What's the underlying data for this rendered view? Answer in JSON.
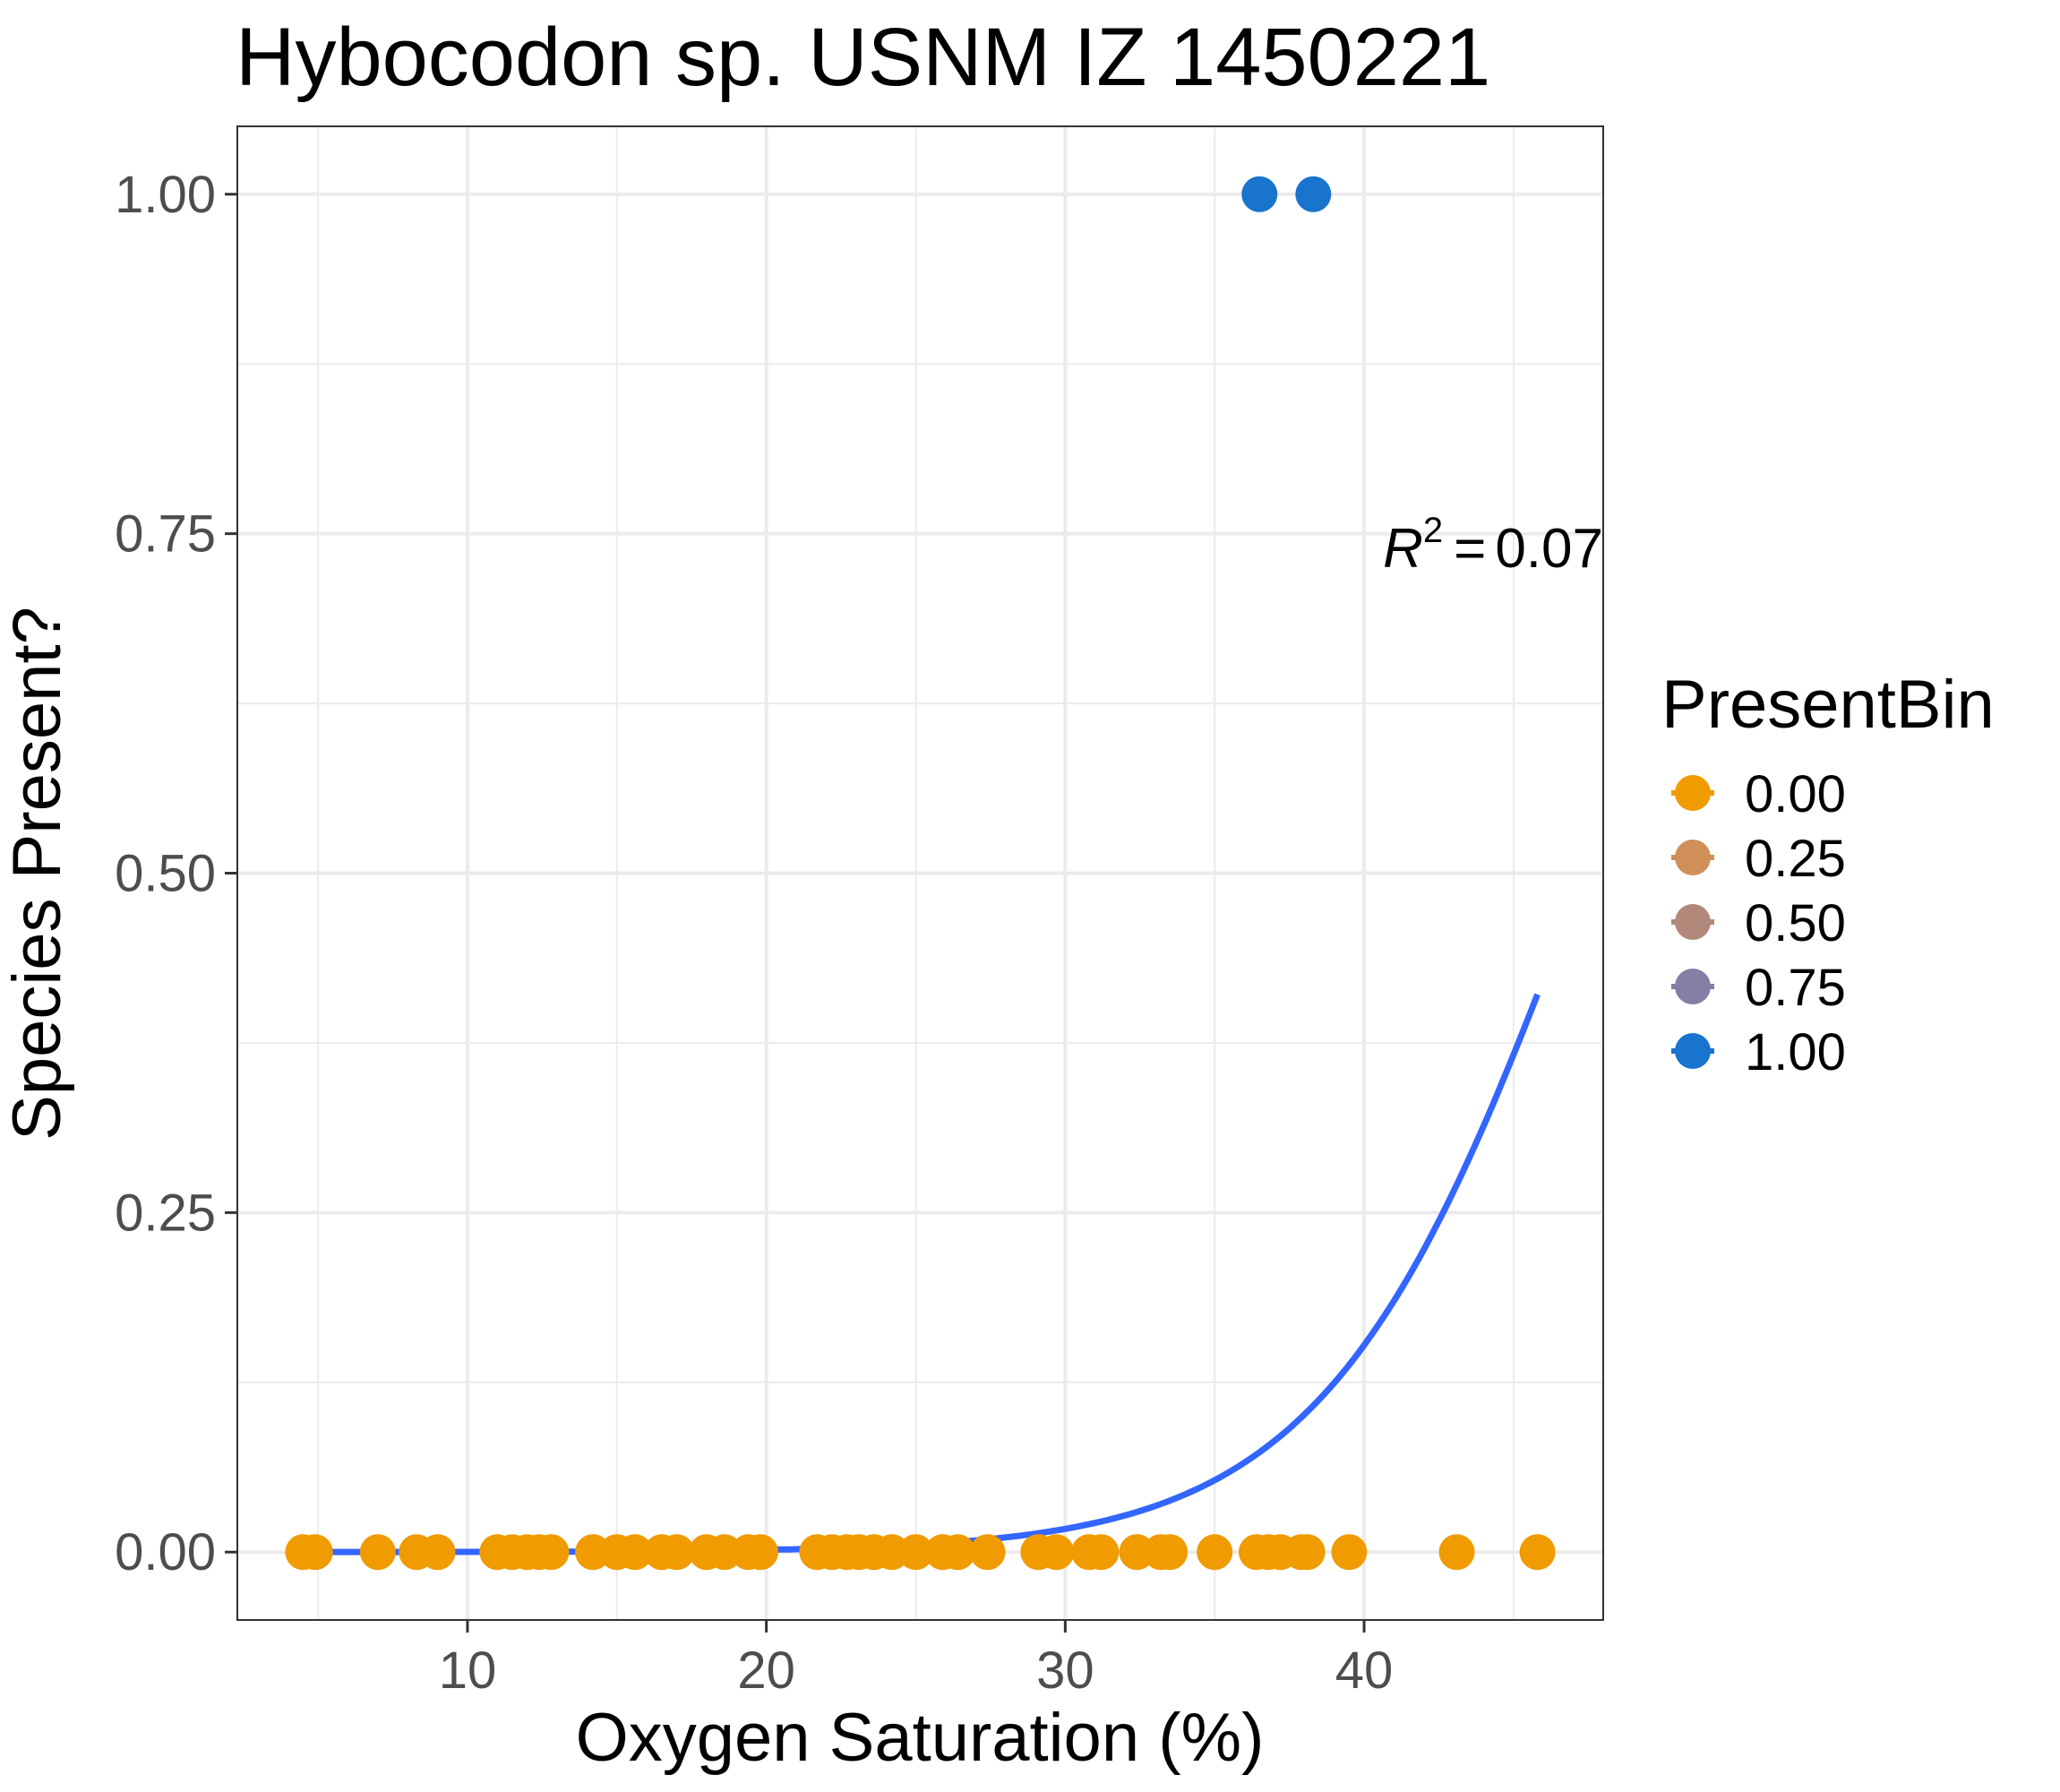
{
  "chart_data": {
    "type": "scatter",
    "title": "Hybocodon sp. USNM IZ 1450221",
    "xlabel": "Oxygen Saturation (%)",
    "ylabel": "Species Present?",
    "xlim": [
      2.3,
      48.0
    ],
    "ylim": [
      -0.05,
      1.05
    ],
    "x_ticks": [
      10,
      20,
      30,
      40
    ],
    "y_ticks": [
      0.0,
      0.25,
      0.5,
      0.75,
      1.0
    ],
    "x_tick_labels": [
      "10",
      "20",
      "30",
      "40"
    ],
    "y_tick_labels": [
      "0.00",
      "0.25",
      "0.50",
      "0.75",
      "1.00"
    ],
    "grid": true,
    "annotation": {
      "r_symbol": "R",
      "exponent": "2",
      "equals": "=",
      "value": "0.07",
      "position_data": [
        44.0,
        0.74
      ]
    },
    "legend": {
      "title": "PresentBin",
      "placement": "right",
      "entries": [
        {
          "label": "0.00",
          "color": "#F09B00"
        },
        {
          "label": "0.25",
          "color": "#D08F58"
        },
        {
          "label": "0.50",
          "color": "#B2887A"
        },
        {
          "label": "0.75",
          "color": "#857EA5"
        },
        {
          "label": "1.00",
          "color": "#1874CD"
        }
      ]
    },
    "colors": {
      "absent": "#F09B00",
      "present": "#1874CD",
      "curve": "#3366FF",
      "grid": "#EBEBEB",
      "panel_border": "#333333"
    },
    "series": [
      {
        "y": 0,
        "x": [
          4.5,
          4.9,
          7.0,
          8.3,
          9.0,
          11.0,
          11.5,
          12.0,
          12.4,
          12.8,
          14.2,
          15.0,
          15.6,
          16.5,
          17.0,
          18.0,
          18.6,
          19.4,
          19.8,
          21.7,
          22.2,
          22.7,
          23.1,
          23.6,
          24.2,
          25.0,
          25.9,
          26.4,
          27.4,
          29.1,
          29.7,
          30.8,
          31.2,
          32.4,
          33.2,
          33.5,
          35.0,
          36.4,
          36.8,
          37.2,
          37.9,
          38.1,
          39.5,
          43.1,
          45.8
        ]
      },
      {
        "y": 1,
        "x": [
          36.5,
          38.3
        ]
      }
    ],
    "fit_curve": {
      "type": "logistic",
      "intercept": -11.06,
      "slope": 0.2336,
      "x_range": [
        4.5,
        45.8
      ]
    }
  }
}
